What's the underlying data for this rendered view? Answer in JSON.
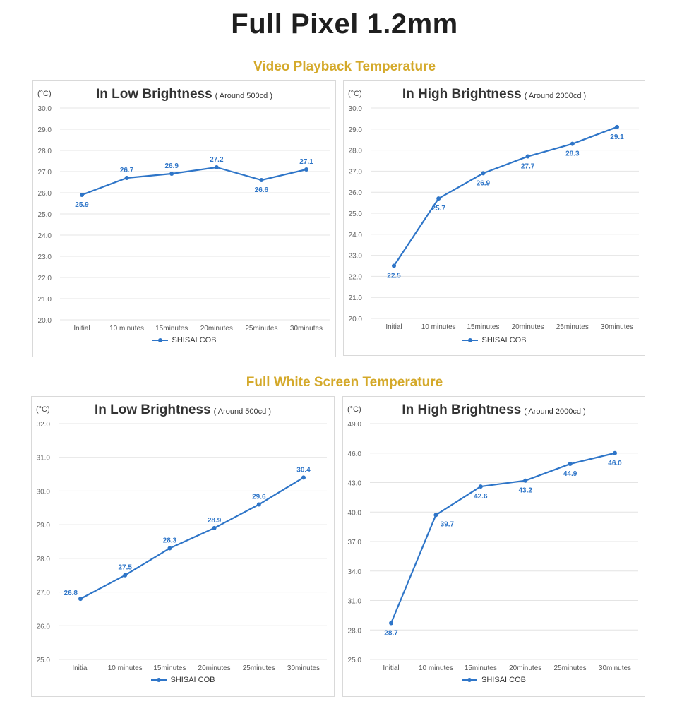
{
  "page": {
    "title": "Full Pixel 1.2mm"
  },
  "sections": [
    {
      "title": "Video Playback Temperature"
    },
    {
      "title": "Full White Screen Temperature"
    }
  ],
  "colors": {
    "line": "#2e75c8",
    "label": "#2e75c8",
    "grid": "#e4e4e4",
    "section": "#d4a92a"
  },
  "chart_data": [
    {
      "type": "line",
      "title": "In Low Brightness",
      "subtitle": "( Around 500cd )",
      "unit": "(°C)",
      "categories": [
        "Initial",
        "10 minutes",
        "15minutes",
        "20minutes",
        "25minutes",
        "30minutes"
      ],
      "series": [
        {
          "name": "SHISAI COB",
          "values": [
            25.9,
            26.7,
            26.9,
            27.2,
            26.6,
            27.1
          ]
        }
      ],
      "label_pos": [
        "below",
        "above",
        "above",
        "above",
        "below",
        "above"
      ],
      "ylim": [
        20.0,
        30.0
      ],
      "yticks": [
        "20.0",
        "21.0",
        "22.0",
        "23.0",
        "24.0",
        "25.0",
        "26.0",
        "27.0",
        "28.0",
        "29.0",
        "30.0"
      ]
    },
    {
      "type": "line",
      "title": "In High Brightness",
      "subtitle": "( Around 2000cd )",
      "unit": "(°C)",
      "categories": [
        "Initial",
        "10 minutes",
        "15minutes",
        "20minutes",
        "25minutes",
        "30minutes"
      ],
      "series": [
        {
          "name": "SHISAI COB",
          "values": [
            22.5,
            25.7,
            26.9,
            27.7,
            28.3,
            29.1
          ]
        }
      ],
      "label_pos": [
        "below",
        "below",
        "below",
        "below",
        "below",
        "below"
      ],
      "ylim": [
        20.0,
        30.0
      ],
      "yticks": [
        "20.0",
        "21.0",
        "22.0",
        "23.0",
        "24.0",
        "25.0",
        "26.0",
        "27.0",
        "28.0",
        "29.0",
        "30.0"
      ]
    },
    {
      "type": "line",
      "title": "In Low Brightness",
      "subtitle": "( Around 500cd )",
      "unit": "(°C)",
      "categories": [
        "Initial",
        "10 minutes",
        "15minutes",
        "20minutes",
        "25minutes",
        "30minutes"
      ],
      "series": [
        {
          "name": "SHISAI COB",
          "values": [
            26.8,
            27.5,
            28.3,
            28.9,
            29.6,
            30.4
          ]
        }
      ],
      "label_pos": [
        "left",
        "above",
        "above",
        "above",
        "above",
        "above"
      ],
      "ylim": [
        25.0,
        32.0
      ],
      "yticks": [
        "25.0",
        "26.0",
        "27.0",
        "28.0",
        "29.0",
        "30.0",
        "31.0",
        "32.0"
      ]
    },
    {
      "type": "line",
      "title": "In High Brightness",
      "subtitle": "( Around 2000cd )",
      "unit": "(°C)",
      "categories": [
        "Initial",
        "10 minutes",
        "15minutes",
        "20minutes",
        "25minutes",
        "30minutes"
      ],
      "series": [
        {
          "name": "SHISAI COB",
          "values": [
            28.7,
            39.7,
            42.6,
            43.2,
            44.9,
            46.0
          ]
        }
      ],
      "label_pos": [
        "below",
        "below-right",
        "below",
        "below",
        "below",
        "below"
      ],
      "ylim": [
        25.0,
        49.0
      ],
      "yticks": [
        "25.0",
        "28.0",
        "31.0",
        "34.0",
        "37.0",
        "40.0",
        "43.0",
        "46.0",
        "49.0"
      ]
    }
  ]
}
